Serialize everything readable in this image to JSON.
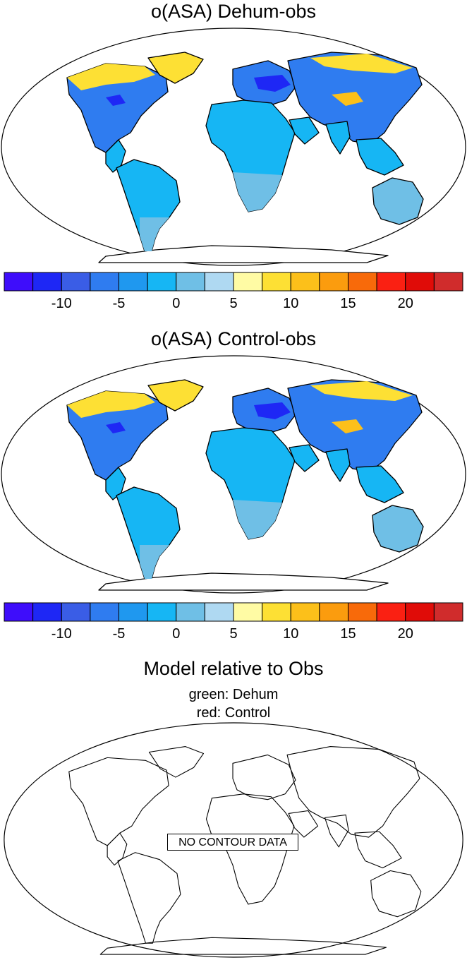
{
  "panels": [
    {
      "title": "o(ASA) Dehum-obs"
    },
    {
      "title": "o(ASA) Control-obs"
    },
    {
      "title": "Model relative to Obs",
      "subtitle_lines": [
        "green: Dehum",
        "red: Control"
      ],
      "no_data_label": "NO CONTOUR DATA"
    }
  ],
  "colorbar": {
    "colors": [
      "#3e0dfb",
      "#1e27f5",
      "#3a5de6",
      "#2f7cf0",
      "#1f98ef",
      "#16b6f4",
      "#6fbfe6",
      "#afd9f2",
      "#fffba4",
      "#fde034",
      "#fcc01a",
      "#fb9c0e",
      "#f86a0a",
      "#fa2012",
      "#e00c08",
      "#d02c2c"
    ],
    "tick_labels": [
      "-10",
      "-5",
      "0",
      "5",
      "10",
      "15",
      "20"
    ]
  },
  "land_colors": {
    "north_temperate": "#2f7cf0",
    "tropics": "#16b6f4",
    "south": "#6fbfe6",
    "arctic": "#fde034",
    "warm_patch": "#fcc01a",
    "cold_patch": "#1e27f5"
  }
}
